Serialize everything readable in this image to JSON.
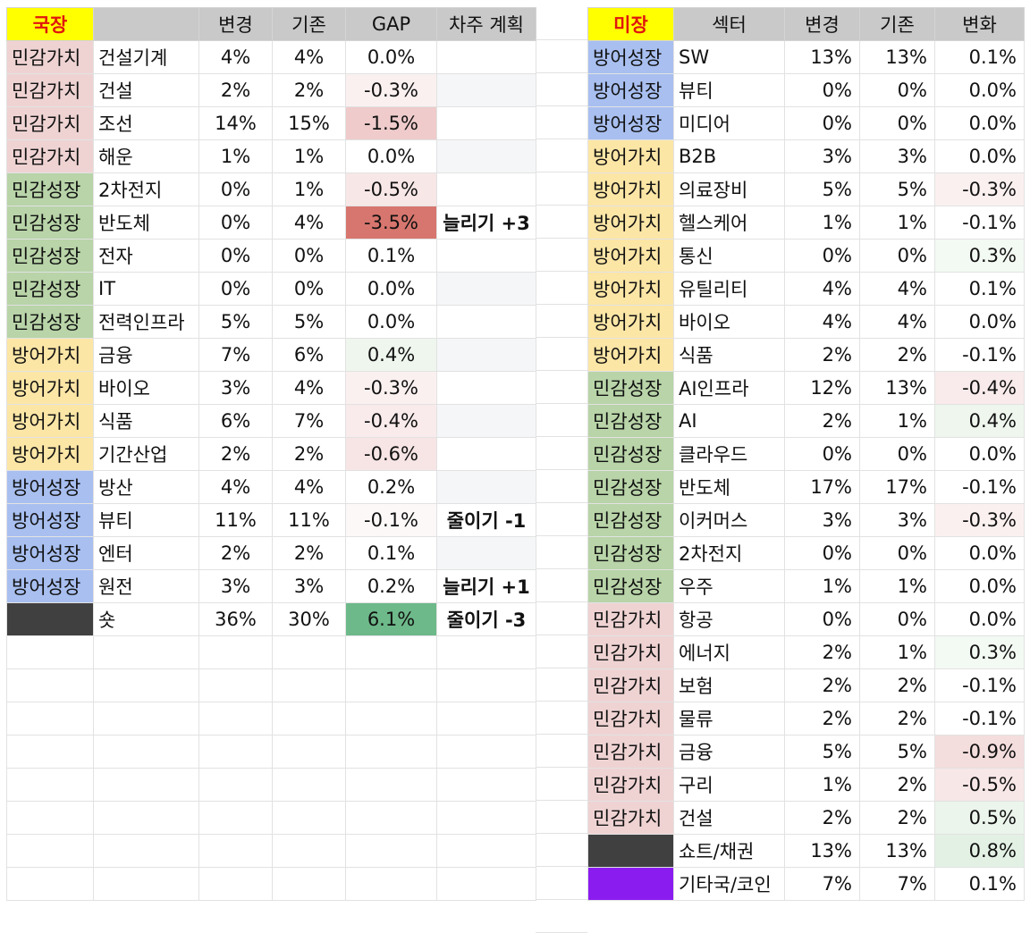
{
  "colors": {
    "민감가치": "#efd3d3",
    "민감성장": "#b8d4a8",
    "방어가치": "#fce6a6",
    "방어성장": "#a8bff0",
    "shot": "#404040",
    "other": "#8b1cf0",
    "plan_up": "#0a22e8",
    "plan_down": "#e51d14",
    "header_bg": "#c9c9c9",
    "header_highlight_bg": "#ffff00",
    "header_highlight_fg": "#e0160e"
  },
  "kr": {
    "headers": [
      "국장",
      "",
      "변경",
      "기존",
      "GAP",
      "차주 계획"
    ],
    "rows": [
      {
        "style": "민감가치",
        "sector": "건설기계",
        "change": "4%",
        "prev": "4%",
        "gap": "0.0%",
        "gap_bg": "",
        "plan": "",
        "plan_type": "",
        "plan_bg": ""
      },
      {
        "style": "민감가치",
        "sector": "건설",
        "change": "2%",
        "prev": "2%",
        "gap": "-0.3%",
        "gap_bg": "#fbf0f0",
        "plan": "",
        "plan_type": "",
        "plan_bg": "#f4f6f8"
      },
      {
        "style": "민감가치",
        "sector": "조선",
        "change": "14%",
        "prev": "15%",
        "gap": "-1.5%",
        "gap_bg": "#efcbcb",
        "plan": "",
        "plan_type": "",
        "plan_bg": ""
      },
      {
        "style": "민감가치",
        "sector": "해운",
        "change": "1%",
        "prev": "1%",
        "gap": "0.0%",
        "gap_bg": "",
        "plan": "",
        "plan_type": "",
        "plan_bg": "#f4f6f8"
      },
      {
        "style": "민감성장",
        "sector": "2차전지",
        "change": "0%",
        "prev": "1%",
        "gap": "-0.5%",
        "gap_bg": "#f8e7e7",
        "plan": "",
        "plan_type": "",
        "plan_bg": ""
      },
      {
        "style": "민감성장",
        "sector": "반도체",
        "change": "0%",
        "prev": "4%",
        "gap": "-3.5%",
        "gap_bg": "#d7766e",
        "plan": "늘리기 +3",
        "plan_type": "up",
        "plan_bg": ""
      },
      {
        "style": "민감성장",
        "sector": "전자",
        "change": "0%",
        "prev": "0%",
        "gap": "0.1%",
        "gap_bg": "",
        "plan": "",
        "plan_type": "",
        "plan_bg": ""
      },
      {
        "style": "민감성장",
        "sector": "IT",
        "change": "0%",
        "prev": "0%",
        "gap": "0.0%",
        "gap_bg": "",
        "plan": "",
        "plan_type": "",
        "plan_bg": "#f4f6f8"
      },
      {
        "style": "민감성장",
        "sector": "전력인프라",
        "change": "5%",
        "prev": "5%",
        "gap": "0.0%",
        "gap_bg": "",
        "plan": "",
        "plan_type": "",
        "plan_bg": ""
      },
      {
        "style": "방어가치",
        "sector": "금융",
        "change": "7%",
        "prev": "6%",
        "gap": "0.4%",
        "gap_bg": "#eef6ee",
        "plan": "",
        "plan_type": "",
        "plan_bg": "#f4f6f8"
      },
      {
        "style": "방어가치",
        "sector": "바이오",
        "change": "3%",
        "prev": "4%",
        "gap": "-0.3%",
        "gap_bg": "#fbf0f0",
        "plan": "",
        "plan_type": "",
        "plan_bg": ""
      },
      {
        "style": "방어가치",
        "sector": "식품",
        "change": "6%",
        "prev": "7%",
        "gap": "-0.4%",
        "gap_bg": "#f9ebeb",
        "plan": "",
        "plan_type": "",
        "plan_bg": "#f4f6f8"
      },
      {
        "style": "방어가치",
        "sector": "기간산업",
        "change": "2%",
        "prev": "2%",
        "gap": "-0.6%",
        "gap_bg": "#f7e4e4",
        "plan": "",
        "plan_type": "",
        "plan_bg": ""
      },
      {
        "style": "방어성장",
        "sector": "방산",
        "change": "4%",
        "prev": "4%",
        "gap": "0.2%",
        "gap_bg": "",
        "plan": "",
        "plan_type": "",
        "plan_bg": "#f4f6f8"
      },
      {
        "style": "방어성장",
        "sector": "뷰티",
        "change": "11%",
        "prev": "11%",
        "gap": "-0.1%",
        "gap_bg": "#fdf8f8",
        "plan": "줄이기 -1",
        "plan_type": "down",
        "plan_bg": ""
      },
      {
        "style": "방어성장",
        "sector": "엔터",
        "change": "2%",
        "prev": "2%",
        "gap": "0.1%",
        "gap_bg": "",
        "plan": "",
        "plan_type": "",
        "plan_bg": "#f4f6f8"
      },
      {
        "style": "방어성장",
        "sector": "원전",
        "change": "3%",
        "prev": "3%",
        "gap": "0.2%",
        "gap_bg": "",
        "plan": "늘리기 +1",
        "plan_type": "up",
        "plan_bg": ""
      },
      {
        "style": "shot",
        "style_label": "",
        "sector": "숏",
        "change": "36%",
        "prev": "30%",
        "gap": "6.1%",
        "gap_bg": "#6db98a",
        "plan": "줄이기 -3",
        "plan_type": "down",
        "plan_bg": ""
      }
    ]
  },
  "us": {
    "headers": [
      "미장",
      "섹터",
      "변경",
      "기존",
      "변화"
    ],
    "rows": [
      {
        "style": "방어성장",
        "sector": "SW",
        "change": "13%",
        "prev": "13%",
        "diff": "0.1%",
        "diff_bg": ""
      },
      {
        "style": "방어성장",
        "sector": "뷰티",
        "change": "0%",
        "prev": "0%",
        "diff": "0.0%",
        "diff_bg": ""
      },
      {
        "style": "방어성장",
        "sector": "미디어",
        "change": "0%",
        "prev": "0%",
        "diff": "0.0%",
        "diff_bg": ""
      },
      {
        "style": "방어가치",
        "sector": "B2B",
        "change": "3%",
        "prev": "3%",
        "diff": "0.0%",
        "diff_bg": ""
      },
      {
        "style": "방어가치",
        "sector": "의료장비",
        "change": "5%",
        "prev": "5%",
        "diff": "-0.3%",
        "diff_bg": "#fbf0f0"
      },
      {
        "style": "방어가치",
        "sector": "헬스케어",
        "change": "1%",
        "prev": "1%",
        "diff": "-0.1%",
        "diff_bg": ""
      },
      {
        "style": "방어가치",
        "sector": "통신",
        "change": "0%",
        "prev": "0%",
        "diff": "0.3%",
        "diff_bg": "#f3f9f3"
      },
      {
        "style": "방어가치",
        "sector": "유틸리티",
        "change": "4%",
        "prev": "4%",
        "diff": "0.1%",
        "diff_bg": ""
      },
      {
        "style": "방어가치",
        "sector": "바이오",
        "change": "4%",
        "prev": "4%",
        "diff": "0.0%",
        "diff_bg": ""
      },
      {
        "style": "방어가치",
        "sector": "식품",
        "change": "2%",
        "prev": "2%",
        "diff": "-0.1%",
        "diff_bg": ""
      },
      {
        "style": "민감성장",
        "sector": "AI인프라",
        "change": "12%",
        "prev": "13%",
        "diff": "-0.4%",
        "diff_bg": "#f9ebeb"
      },
      {
        "style": "민감성장",
        "sector": "AI",
        "change": "2%",
        "prev": "1%",
        "diff": "0.4%",
        "diff_bg": "#eef6ee"
      },
      {
        "style": "민감성장",
        "sector": "클라우드",
        "change": "0%",
        "prev": "0%",
        "diff": "0.0%",
        "diff_bg": ""
      },
      {
        "style": "민감성장",
        "sector": "반도체",
        "change": "17%",
        "prev": "17%",
        "diff": "-0.1%",
        "diff_bg": ""
      },
      {
        "style": "민감성장",
        "sector": "이커머스",
        "change": "3%",
        "prev": "3%",
        "diff": "-0.3%",
        "diff_bg": "#fbf0f0"
      },
      {
        "style": "민감성장",
        "sector": "2차전지",
        "change": "0%",
        "prev": "0%",
        "diff": "0.0%",
        "diff_bg": ""
      },
      {
        "style": "민감성장",
        "sector": "우주",
        "change": "1%",
        "prev": "1%",
        "diff": "0.0%",
        "diff_bg": ""
      },
      {
        "style": "민감가치",
        "sector": "항공",
        "change": "0%",
        "prev": "0%",
        "diff": "0.0%",
        "diff_bg": ""
      },
      {
        "style": "민감가치",
        "sector": "에너지",
        "change": "2%",
        "prev": "1%",
        "diff": "0.3%",
        "diff_bg": "#f3f9f3"
      },
      {
        "style": "민감가치",
        "sector": "보험",
        "change": "2%",
        "prev": "2%",
        "diff": "-0.1%",
        "diff_bg": ""
      },
      {
        "style": "민감가치",
        "sector": "물류",
        "change": "2%",
        "prev": "2%",
        "diff": "-0.1%",
        "diff_bg": ""
      },
      {
        "style": "민감가치",
        "sector": "금융",
        "change": "5%",
        "prev": "5%",
        "diff": "-0.9%",
        "diff_bg": "#f4dddd"
      },
      {
        "style": "민감가치",
        "sector": "구리",
        "change": "1%",
        "prev": "2%",
        "diff": "-0.5%",
        "diff_bg": "#f8e7e7"
      },
      {
        "style": "민감가치",
        "sector": "건설",
        "change": "2%",
        "prev": "2%",
        "diff": "0.5%",
        "diff_bg": "#ebf5ec"
      },
      {
        "style": "shot",
        "style_label": "",
        "sector": "쇼트/채권",
        "change": "13%",
        "prev": "13%",
        "diff": "0.8%",
        "diff_bg": "#e3f1e5"
      },
      {
        "style": "other",
        "style_label": "",
        "sector": "기타국/코인",
        "change": "7%",
        "prev": "7%",
        "diff": "0.1%",
        "diff_bg": ""
      }
    ]
  }
}
